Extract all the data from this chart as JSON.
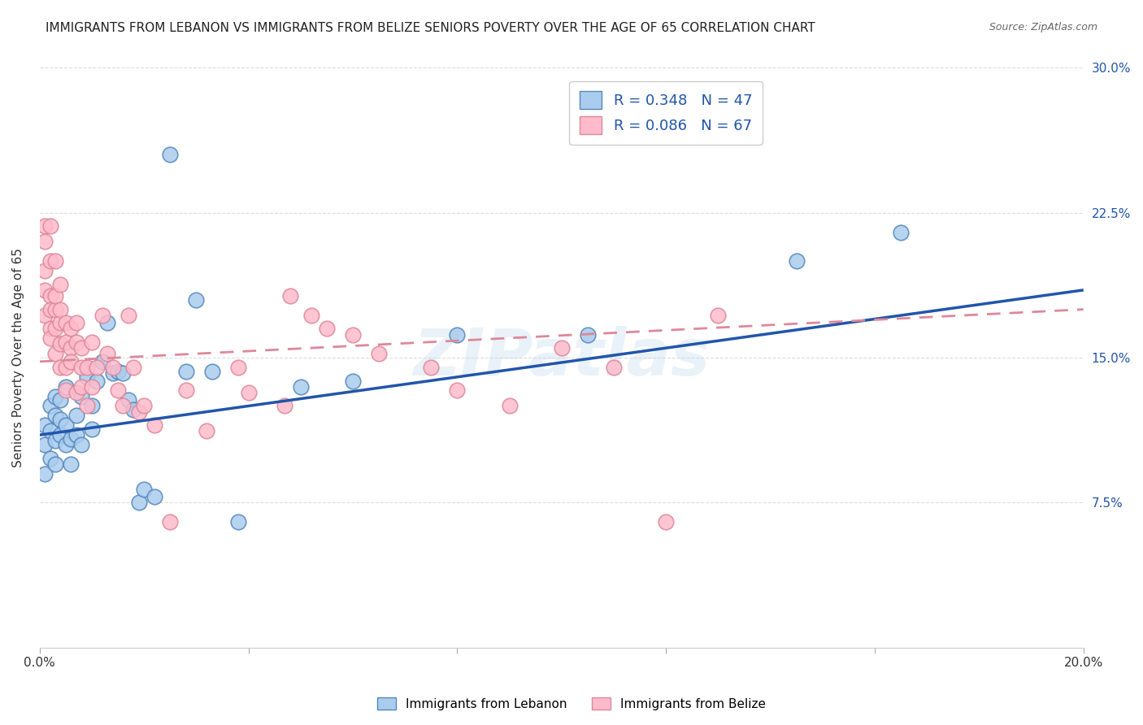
{
  "title": "IMMIGRANTS FROM LEBANON VS IMMIGRANTS FROM BELIZE SENIORS POVERTY OVER THE AGE OF 65 CORRELATION CHART",
  "source": "Source: ZipAtlas.com",
  "ylabel": "Seniors Poverty Over the Age of 65",
  "xlim": [
    0.0,
    0.2
  ],
  "ylim": [
    0.0,
    0.3
  ],
  "xtick_positions": [
    0.0,
    0.04,
    0.08,
    0.12,
    0.16,
    0.2
  ],
  "xtick_labels": [
    "0.0%",
    "",
    "",
    "",
    "",
    "20.0%"
  ],
  "ytick_positions": [
    0.0,
    0.075,
    0.15,
    0.225,
    0.3
  ],
  "ytick_labels_right": [
    "",
    "7.5%",
    "15.0%",
    "22.5%",
    "30.0%"
  ],
  "lebanon_R": 0.348,
  "lebanon_N": 47,
  "belize_R": 0.086,
  "belize_N": 67,
  "lebanon_color": "#aaccee",
  "lebanon_edge_color": "#5588bb",
  "lebanon_line_color": "#2255aa",
  "belize_color": "#ffbbcc",
  "belize_edge_color": "#dd8899",
  "belize_line_color": "#dd8899",
  "lebanon_line_x0": 0.0,
  "lebanon_line_y0": 0.11,
  "lebanon_line_x1": 0.2,
  "lebanon_line_y1": 0.185,
  "belize_line_x0": 0.0,
  "belize_line_y0": 0.148,
  "belize_line_x1": 0.2,
  "belize_line_y1": 0.175,
  "lebanon_scatter_x": [
    0.001,
    0.001,
    0.001,
    0.002,
    0.002,
    0.002,
    0.003,
    0.003,
    0.003,
    0.003,
    0.004,
    0.004,
    0.004,
    0.005,
    0.005,
    0.005,
    0.006,
    0.006,
    0.007,
    0.007,
    0.008,
    0.008,
    0.009,
    0.01,
    0.01,
    0.011,
    0.012,
    0.013,
    0.014,
    0.015,
    0.016,
    0.017,
    0.018,
    0.019,
    0.02,
    0.022,
    0.025,
    0.028,
    0.03,
    0.033,
    0.038,
    0.05,
    0.06,
    0.08,
    0.105,
    0.145,
    0.165
  ],
  "lebanon_scatter_y": [
    0.105,
    0.09,
    0.115,
    0.098,
    0.112,
    0.125,
    0.107,
    0.095,
    0.12,
    0.13,
    0.11,
    0.118,
    0.128,
    0.105,
    0.115,
    0.135,
    0.108,
    0.095,
    0.12,
    0.11,
    0.13,
    0.105,
    0.14,
    0.125,
    0.113,
    0.138,
    0.148,
    0.168,
    0.142,
    0.143,
    0.142,
    0.128,
    0.123,
    0.075,
    0.082,
    0.078,
    0.255,
    0.143,
    0.18,
    0.143,
    0.065,
    0.135,
    0.138,
    0.162,
    0.162,
    0.2,
    0.215
  ],
  "belize_scatter_x": [
    0.001,
    0.001,
    0.001,
    0.001,
    0.001,
    0.002,
    0.002,
    0.002,
    0.002,
    0.002,
    0.002,
    0.003,
    0.003,
    0.003,
    0.003,
    0.003,
    0.004,
    0.004,
    0.004,
    0.004,
    0.004,
    0.005,
    0.005,
    0.005,
    0.005,
    0.006,
    0.006,
    0.006,
    0.007,
    0.007,
    0.007,
    0.008,
    0.008,
    0.008,
    0.009,
    0.009,
    0.01,
    0.01,
    0.011,
    0.012,
    0.013,
    0.014,
    0.015,
    0.016,
    0.017,
    0.018,
    0.019,
    0.02,
    0.022,
    0.025,
    0.028,
    0.032,
    0.038,
    0.04,
    0.047,
    0.052,
    0.06,
    0.065,
    0.075,
    0.08,
    0.09,
    0.1,
    0.11,
    0.12,
    0.13,
    0.048,
    0.055
  ],
  "belize_scatter_y": [
    0.21,
    0.195,
    0.185,
    0.172,
    0.218,
    0.2,
    0.182,
    0.165,
    0.218,
    0.175,
    0.16,
    0.175,
    0.165,
    0.182,
    0.152,
    0.2,
    0.168,
    0.175,
    0.145,
    0.157,
    0.188,
    0.145,
    0.158,
    0.168,
    0.133,
    0.155,
    0.165,
    0.148,
    0.132,
    0.158,
    0.168,
    0.145,
    0.135,
    0.155,
    0.145,
    0.125,
    0.135,
    0.158,
    0.145,
    0.172,
    0.152,
    0.145,
    0.133,
    0.125,
    0.172,
    0.145,
    0.122,
    0.125,
    0.115,
    0.065,
    0.133,
    0.112,
    0.145,
    0.132,
    0.125,
    0.172,
    0.162,
    0.152,
    0.145,
    0.133,
    0.125,
    0.155,
    0.145,
    0.065,
    0.172,
    0.182,
    0.165
  ],
  "background_color": "#ffffff",
  "grid_color": "#dddddd",
  "title_fontsize": 11,
  "axis_label_fontsize": 11,
  "tick_fontsize": 11,
  "legend_fontsize": 13
}
